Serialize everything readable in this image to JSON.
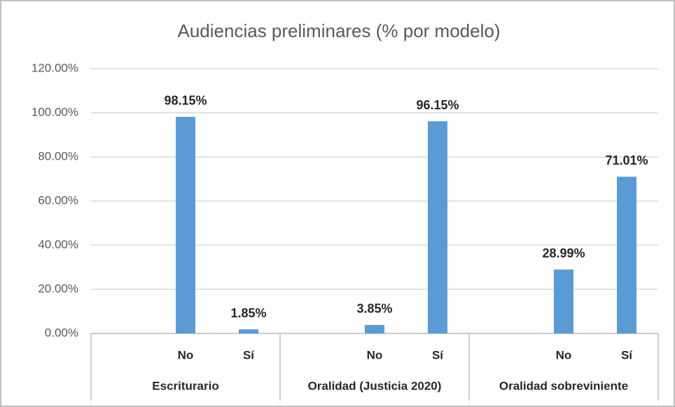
{
  "chart_data": {
    "type": "bar",
    "title": "Audiencias preliminares (% por modelo)",
    "categories": [
      null,
      "No",
      "Sí",
      null,
      "No",
      "Sí",
      null,
      "No",
      "Sí"
    ],
    "groups": [
      "Escriturario",
      "Oralidad (Justicia 2020)",
      "Oralidad sobreviniente"
    ],
    "values": [
      null,
      98.15,
      1.85,
      null,
      3.85,
      96.15,
      null,
      28.99,
      71.01
    ],
    "value_labels": [
      null,
      "98.15%",
      "1.85%",
      null,
      "3.85%",
      "96.15%",
      null,
      "28.99%",
      "71.01%"
    ],
    "color": "#5b9bd5",
    "ylim": [
      0,
      120
    ],
    "yticks": [
      {
        "value": 0,
        "label": "0.00%"
      },
      {
        "value": 20,
        "label": "20.00%"
      },
      {
        "value": 40,
        "label": "40.00%"
      },
      {
        "value": 60,
        "label": "60.00%"
      },
      {
        "value": 80,
        "label": "80.00%"
      },
      {
        "value": 100,
        "label": "100.00%"
      },
      {
        "value": 120,
        "label": "120.00%"
      }
    ],
    "grid": true
  }
}
